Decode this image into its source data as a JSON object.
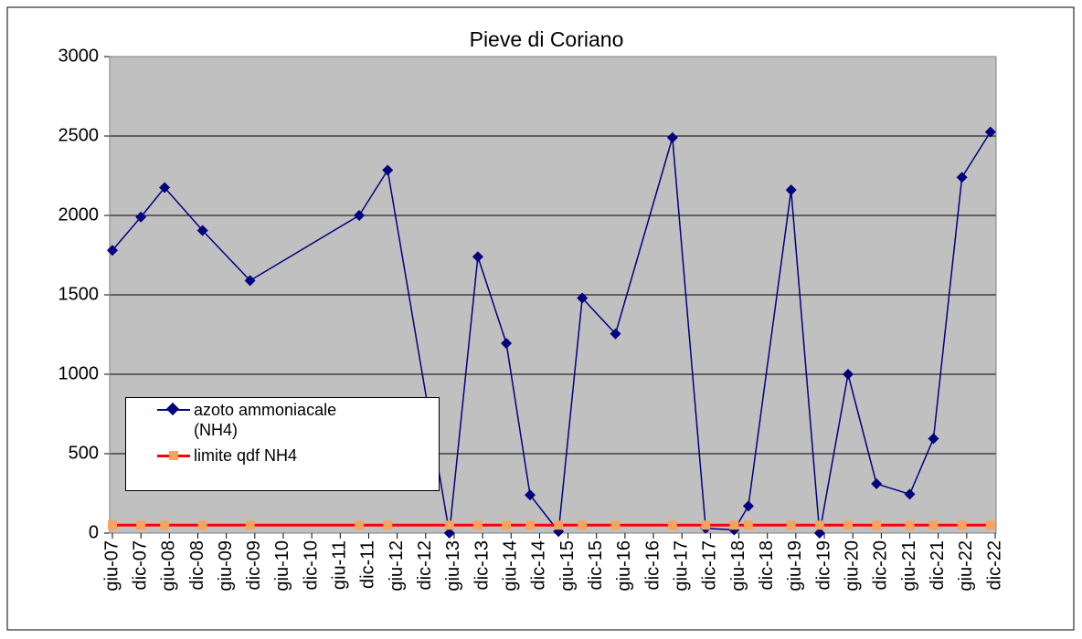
{
  "chart_data": {
    "type": "line",
    "title": "Pieve di Coriano",
    "x": [
      "2007-06",
      "2007-12",
      "2008-05",
      "2009-01",
      "2009-11",
      "2011-10",
      "2012-04",
      "2013-05",
      "2013-11",
      "2014-05",
      "2014-10",
      "2015-04",
      "2015-09",
      "2016-04",
      "2017-04",
      "2017-11",
      "2018-05",
      "2018-08",
      "2019-05",
      "2019-11",
      "2020-05",
      "2020-11",
      "2021-06",
      "2021-11",
      "2022-05",
      "2022-11"
    ],
    "series": [
      {
        "name": "azoto ammoniacale (NH4)",
        "color": "#000080",
        "marker": "diamond",
        "values": [
          1780,
          1990,
          2175,
          1905,
          1590,
          2000,
          2285,
          0,
          1740,
          1195,
          240,
          10,
          1480,
          1255,
          2490,
          30,
          20,
          170,
          2160,
          0,
          1000,
          310,
          245,
          595,
          2240,
          2525
        ]
      },
      {
        "name": "limite qdf NH4",
        "color": "#ff0000",
        "marker_color": "#f4a460",
        "marker": "square",
        "values": [
          50,
          50,
          50,
          50,
          50,
          50,
          50,
          50,
          50,
          50,
          50,
          50,
          50,
          50,
          50,
          50,
          50,
          50,
          50,
          50,
          50,
          50,
          50,
          50,
          50,
          50
        ]
      }
    ],
    "xlim": [
      "2007-06",
      "2022-12"
    ],
    "xticks": [
      {
        "value": "2007-06",
        "label": "giu-07"
      },
      {
        "value": "2007-12",
        "label": "dic-07"
      },
      {
        "value": "2008-06",
        "label": "giu-08"
      },
      {
        "value": "2008-12",
        "label": "dic-08"
      },
      {
        "value": "2009-06",
        "label": "giu-09"
      },
      {
        "value": "2009-12",
        "label": "dic-09"
      },
      {
        "value": "2010-06",
        "label": "giu-10"
      },
      {
        "value": "2010-12",
        "label": "dic-10"
      },
      {
        "value": "2011-06",
        "label": "giu-11"
      },
      {
        "value": "2011-12",
        "label": "dic-11"
      },
      {
        "value": "2012-06",
        "label": "giu-12"
      },
      {
        "value": "2012-12",
        "label": "dic-12"
      },
      {
        "value": "2013-06",
        "label": "giu-13"
      },
      {
        "value": "2013-12",
        "label": "dic-13"
      },
      {
        "value": "2014-06",
        "label": "giu-14"
      },
      {
        "value": "2014-12",
        "label": "dic-14"
      },
      {
        "value": "2015-06",
        "label": "giu-15"
      },
      {
        "value": "2015-12",
        "label": "dic-15"
      },
      {
        "value": "2016-06",
        "label": "giu-16"
      },
      {
        "value": "2016-12",
        "label": "dic-16"
      },
      {
        "value": "2017-06",
        "label": "giu-17"
      },
      {
        "value": "2017-12",
        "label": "dic-17"
      },
      {
        "value": "2018-06",
        "label": "giu-18"
      },
      {
        "value": "2018-12",
        "label": "dic-18"
      },
      {
        "value": "2019-06",
        "label": "giu-19"
      },
      {
        "value": "2019-12",
        "label": "dic-19"
      },
      {
        "value": "2020-06",
        "label": "giu-20"
      },
      {
        "value": "2020-12",
        "label": "dic-20"
      },
      {
        "value": "2021-06",
        "label": "giu-21"
      },
      {
        "value": "2021-12",
        "label": "dic-21"
      },
      {
        "value": "2022-06",
        "label": "giu-22"
      },
      {
        "value": "2022-12",
        "label": "dic-22"
      }
    ],
    "ylim": [
      0,
      3000
    ],
    "yticks": [
      0,
      500,
      1000,
      1500,
      2000,
      2500,
      3000
    ],
    "grid": true
  }
}
